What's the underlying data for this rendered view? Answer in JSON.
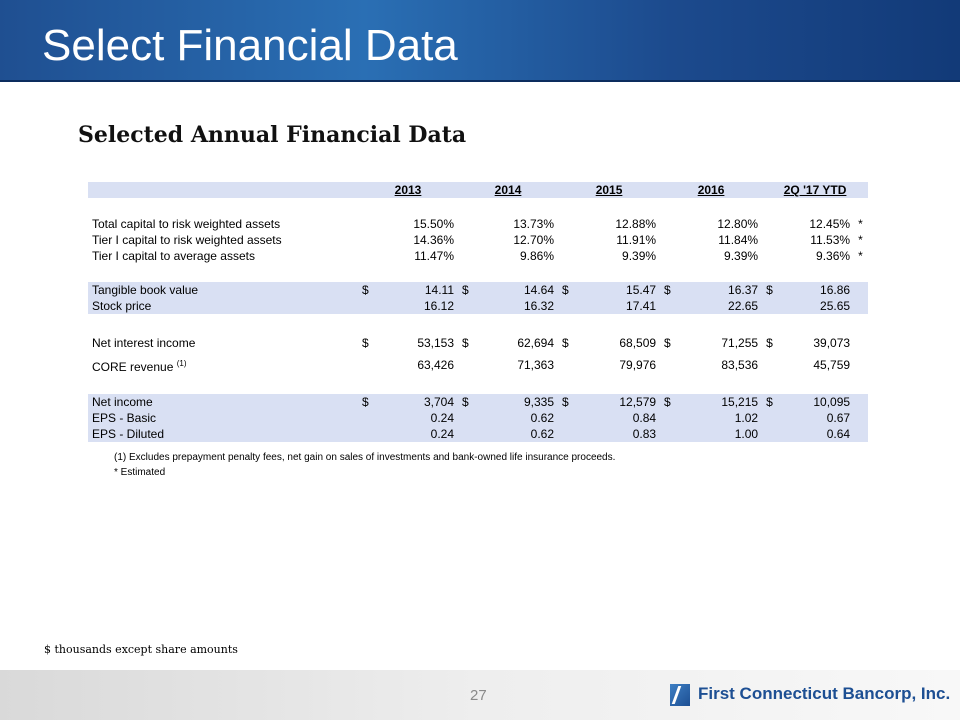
{
  "header": {
    "title": "Select Financial Data"
  },
  "subtitle": "Selected Annual Financial Data",
  "table": {
    "columns": [
      "2013",
      "2014",
      "2015",
      "2016",
      "2Q '17 YTD"
    ],
    "capital": [
      {
        "label": "Total capital to risk weighted assets",
        "values": [
          "15.50%",
          "13.73%",
          "12.88%",
          "12.80%",
          "12.45%"
        ],
        "flag": "*"
      },
      {
        "label": "Tier I capital to risk weighted assets",
        "values": [
          "14.36%",
          "12.70%",
          "11.91%",
          "11.84%",
          "11.53%"
        ],
        "flag": "*"
      },
      {
        "label": "Tier I capital to average assets",
        "values": [
          "11.47%",
          "9.86%",
          "9.39%",
          "9.39%",
          "9.36%"
        ],
        "flag": "*"
      }
    ],
    "per_share": [
      {
        "label": "Tangible book value",
        "dollar": "$",
        "values": [
          "14.11",
          "14.64",
          "15.47",
          "16.37",
          "16.86"
        ]
      },
      {
        "label": "Stock price",
        "dollar": "",
        "values": [
          "16.12",
          "16.32",
          "17.41",
          "22.65",
          "25.65"
        ]
      }
    ],
    "revenue": [
      {
        "label": "Net interest income",
        "note": "",
        "dollar": "$",
        "values": [
          "53,153",
          "62,694",
          "68,509",
          "71,255",
          "39,073"
        ]
      },
      {
        "label": "CORE revenue",
        "note": "(1)",
        "dollar": "",
        "values": [
          "63,426",
          "71,363",
          "79,976",
          "83,536",
          "45,759"
        ]
      }
    ],
    "income": [
      {
        "label": "Net income",
        "dollar": "$",
        "values": [
          "3,704",
          "9,335",
          "12,579",
          "15,215",
          "10,095"
        ]
      },
      {
        "label": "EPS - Basic",
        "dollar": "",
        "values": [
          "0.24",
          "0.62",
          "0.84",
          "1.02",
          "0.67"
        ]
      },
      {
        "label": "EPS - Diluted",
        "dollar": "",
        "values": [
          "0.24",
          "0.62",
          "0.83",
          "1.00",
          "0.64"
        ]
      }
    ]
  },
  "footnotes": {
    "note1": "(1) Excludes prepayment penalty fees, net gain on sales of investments and bank-owned life insurance proceeds.",
    "note2": "* Estimated"
  },
  "units_note": "$ thousands except  share amounts",
  "footer": {
    "page_number": "27",
    "company": "First Connecticut Bancorp, Inc."
  }
}
